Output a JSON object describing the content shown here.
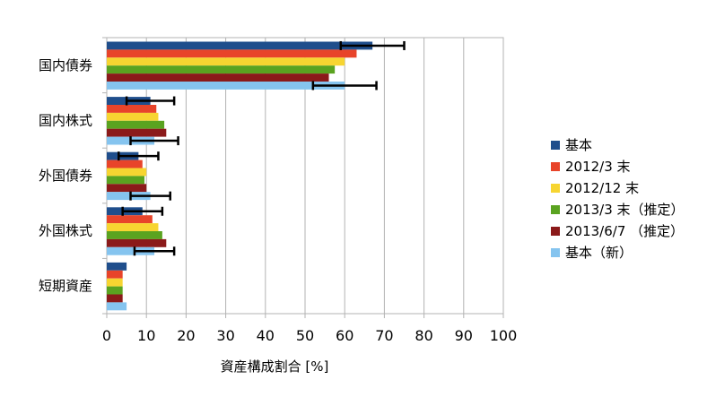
{
  "chart_data": {
    "type": "bar",
    "orientation": "horizontal",
    "title": "",
    "xlabel": "資産構成割合 [%]",
    "ylabel": "",
    "xlim": [
      0,
      100
    ],
    "xticks": [
      0,
      10,
      20,
      30,
      40,
      50,
      60,
      70,
      80,
      90,
      100
    ],
    "grid": true,
    "legend_position": "right",
    "categories": [
      "国内債券",
      "国内株式",
      "外国債券",
      "外国株式",
      "短期資産"
    ],
    "series": [
      {
        "name": "基本",
        "color": "#1f4e8c",
        "values": [
          67,
          11,
          8,
          9,
          5
        ],
        "error": [
          [
            59,
            75
          ],
          [
            5,
            17
          ],
          [
            3,
            13
          ],
          [
            4,
            14
          ],
          null
        ]
      },
      {
        "name": "2012/3 末",
        "color": "#e8442a",
        "values": [
          63,
          12.5,
          9,
          11.5,
          4
        ],
        "error": [
          null,
          null,
          null,
          null,
          null
        ]
      },
      {
        "name": "2012/12 末",
        "color": "#f7d531",
        "values": [
          60,
          13,
          10,
          13,
          4
        ],
        "error": [
          null,
          null,
          null,
          null,
          null
        ]
      },
      {
        "name": "2013/3 末（推定）",
        "color": "#5aa320",
        "values": [
          57.5,
          14.5,
          9.5,
          14,
          4
        ],
        "error": [
          null,
          null,
          null,
          null,
          null
        ]
      },
      {
        "name": "2013/6/7 （推定）",
        "color": "#8b1a1a",
        "values": [
          56,
          15,
          10,
          15,
          4
        ],
        "error": [
          null,
          null,
          null,
          null,
          null
        ]
      },
      {
        "name": "基本（新）",
        "color": "#85c4ef",
        "values": [
          60,
          12,
          11,
          12,
          5
        ],
        "error": [
          [
            52,
            68
          ],
          [
            6,
            18
          ],
          [
            6,
            16
          ],
          [
            7,
            17
          ],
          null
        ]
      }
    ]
  }
}
